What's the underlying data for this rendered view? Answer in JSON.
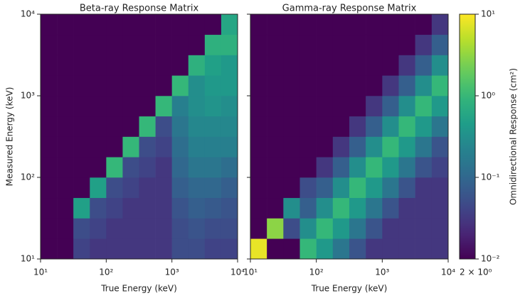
{
  "chart_data": [
    {
      "type": "heatmap",
      "title": "Beta-ray Response Matrix",
      "xlabel": "True Energy (keV)",
      "ylabel": "Measured Energy (keV)",
      "log_x": true,
      "log_y": true,
      "colormap": "viridis",
      "xlim": [
        10,
        10000
      ],
      "ylim": [
        10,
        10000
      ],
      "xticks": [
        {
          "value": 10,
          "label": "10¹"
        },
        {
          "value": 100,
          "label": "10²"
        },
        {
          "value": 1000,
          "label": "10³"
        },
        {
          "value": 10000,
          "label": "10⁴"
        }
      ],
      "yticks": [
        {
          "value": 10,
          "label": "10¹"
        },
        {
          "value": 100,
          "label": "10²"
        },
        {
          "value": 1000,
          "label": "10³"
        },
        {
          "value": 10000,
          "label": "10⁴"
        }
      ],
      "x_bins": [
        10,
        17.78,
        31.62,
        56.23,
        100,
        177.8,
        316.2,
        562.3,
        1000,
        1778,
        3162,
        5623,
        10000
      ],
      "y_bins": [
        10,
        17.78,
        31.62,
        56.23,
        100,
        177.8,
        316.2,
        562.3,
        1000,
        1778,
        3162,
        5623,
        10000
      ],
      "z": [
        [
          0.01,
          0.01,
          0.04,
          0.03,
          0.03,
          0.03,
          0.03,
          0.03,
          0.05,
          0.05,
          0.04,
          0.04
        ],
        [
          0.01,
          0.01,
          0.05,
          0.04,
          0.03,
          0.03,
          0.03,
          0.03,
          0.05,
          0.06,
          0.05,
          0.05
        ],
        [
          0.01,
          0.01,
          0.5,
          0.05,
          0.04,
          0.03,
          0.03,
          0.03,
          0.06,
          0.08,
          0.07,
          0.06
        ],
        [
          0.01,
          0.01,
          0.01,
          0.5,
          0.05,
          0.04,
          0.03,
          0.03,
          0.08,
          0.1,
          0.1,
          0.08
        ],
        [
          0.01,
          0.01,
          0.01,
          0.01,
          1,
          0.05,
          0.04,
          0.03,
          0.1,
          0.15,
          0.15,
          0.12
        ],
        [
          0.01,
          0.01,
          0.01,
          0.01,
          0.01,
          1,
          0.05,
          0.04,
          0.12,
          0.2,
          0.2,
          0.2
        ],
        [
          0.01,
          0.01,
          0.01,
          0.01,
          0.01,
          0.01,
          1,
          0.05,
          0.15,
          0.25,
          0.25,
          0.25
        ],
        [
          0.01,
          0.01,
          0.01,
          0.01,
          0.01,
          0.01,
          0.01,
          1,
          0.2,
          0.3,
          0.35,
          0.3
        ],
        [
          0.01,
          0.01,
          0.01,
          0.01,
          0.01,
          0.01,
          0.01,
          0.01,
          1,
          0.3,
          0.4,
          0.4
        ],
        [
          0.01,
          0.01,
          0.01,
          0.01,
          0.01,
          0.01,
          0.01,
          0.01,
          0.01,
          0.8,
          0.5,
          0.4
        ],
        [
          0.01,
          0.01,
          0.01,
          0.01,
          0.01,
          0.01,
          0.01,
          0.01,
          0.01,
          0.01,
          0.8,
          0.8
        ],
        [
          0.01,
          0.01,
          0.01,
          0.01,
          0.01,
          0.01,
          0.01,
          0.01,
          0.01,
          0.01,
          0.01,
          0.6
        ]
      ]
    },
    {
      "type": "heatmap",
      "title": "Gamma-ray Response Matrix",
      "xlabel": "True Energy (keV)",
      "log_x": true,
      "log_y": true,
      "colormap": "viridis",
      "xlim": [
        10,
        10000
      ],
      "ylim": [
        10,
        10000
      ],
      "xticks": [
        {
          "value": 10,
          "label": "10¹"
        },
        {
          "value": 100,
          "label": "10²"
        },
        {
          "value": 1000,
          "label": "10³"
        },
        {
          "value": 10000,
          "label": "10⁴"
        }
      ],
      "yticks": [
        10,
        100,
        1000,
        10000
      ],
      "x_bins": [
        10,
        17.78,
        31.62,
        56.23,
        100,
        177.8,
        316.2,
        562.3,
        1000,
        1778,
        3162,
        5623,
        10000
      ],
      "y_bins": [
        10,
        17.78,
        31.62,
        56.23,
        100,
        177.8,
        316.2,
        562.3,
        1000,
        1778,
        3162,
        5623,
        10000
      ],
      "z": [
        [
          8,
          0.01,
          0.01,
          1,
          0.4,
          0.15,
          0.06,
          0.03,
          0.03,
          0.03,
          0.03,
          0.03
        ],
        [
          0.01,
          3,
          0.05,
          0.3,
          1,
          0.4,
          0.15,
          0.06,
          0.03,
          0.03,
          0.03,
          0.03
        ],
        [
          0.01,
          0.01,
          0.3,
          0.08,
          0.3,
          1,
          0.4,
          0.15,
          0.06,
          0.03,
          0.03,
          0.03
        ],
        [
          0.01,
          0.01,
          0.01,
          0.05,
          0.08,
          0.3,
          1,
          0.4,
          0.15,
          0.06,
          0.03,
          0.03
        ],
        [
          0.01,
          0.01,
          0.01,
          0.01,
          0.03,
          0.08,
          0.3,
          1,
          0.4,
          0.15,
          0.06,
          0.04
        ],
        [
          0.01,
          0.01,
          0.01,
          0.01,
          0.01,
          0.03,
          0.08,
          0.3,
          1,
          0.4,
          0.15,
          0.06
        ],
        [
          0.01,
          0.01,
          0.01,
          0.01,
          0.01,
          0.01,
          0.03,
          0.08,
          0.3,
          1,
          0.4,
          0.15
        ],
        [
          0.01,
          0.01,
          0.01,
          0.01,
          0.01,
          0.01,
          0.01,
          0.03,
          0.08,
          0.3,
          1,
          0.4
        ],
        [
          0.01,
          0.01,
          0.01,
          0.01,
          0.01,
          0.01,
          0.01,
          0.01,
          0.03,
          0.08,
          0.3,
          1
        ],
        [
          0.01,
          0.01,
          0.01,
          0.01,
          0.01,
          0.01,
          0.01,
          0.01,
          0.01,
          0.03,
          0.08,
          0.3
        ],
        [
          0.01,
          0.01,
          0.01,
          0.01,
          0.01,
          0.01,
          0.01,
          0.01,
          0.01,
          0.01,
          0.03,
          0.08
        ],
        [
          0.01,
          0.01,
          0.01,
          0.01,
          0.01,
          0.01,
          0.01,
          0.01,
          0.01,
          0.01,
          0.01,
          0.03
        ]
      ],
      "colorbar": {
        "label": "Omnidirectional Response (cm²)",
        "log": true,
        "lim": [
          0.01,
          10
        ],
        "ticks": [
          {
            "value": 0.01,
            "label": "10⁻²"
          },
          {
            "value": 0.1,
            "label": "10⁻¹"
          },
          {
            "value": 1,
            "label": "10⁰"
          },
          {
            "value": 10,
            "label": "10¹"
          }
        ],
        "annotation": "2 × 10⁰"
      }
    }
  ]
}
